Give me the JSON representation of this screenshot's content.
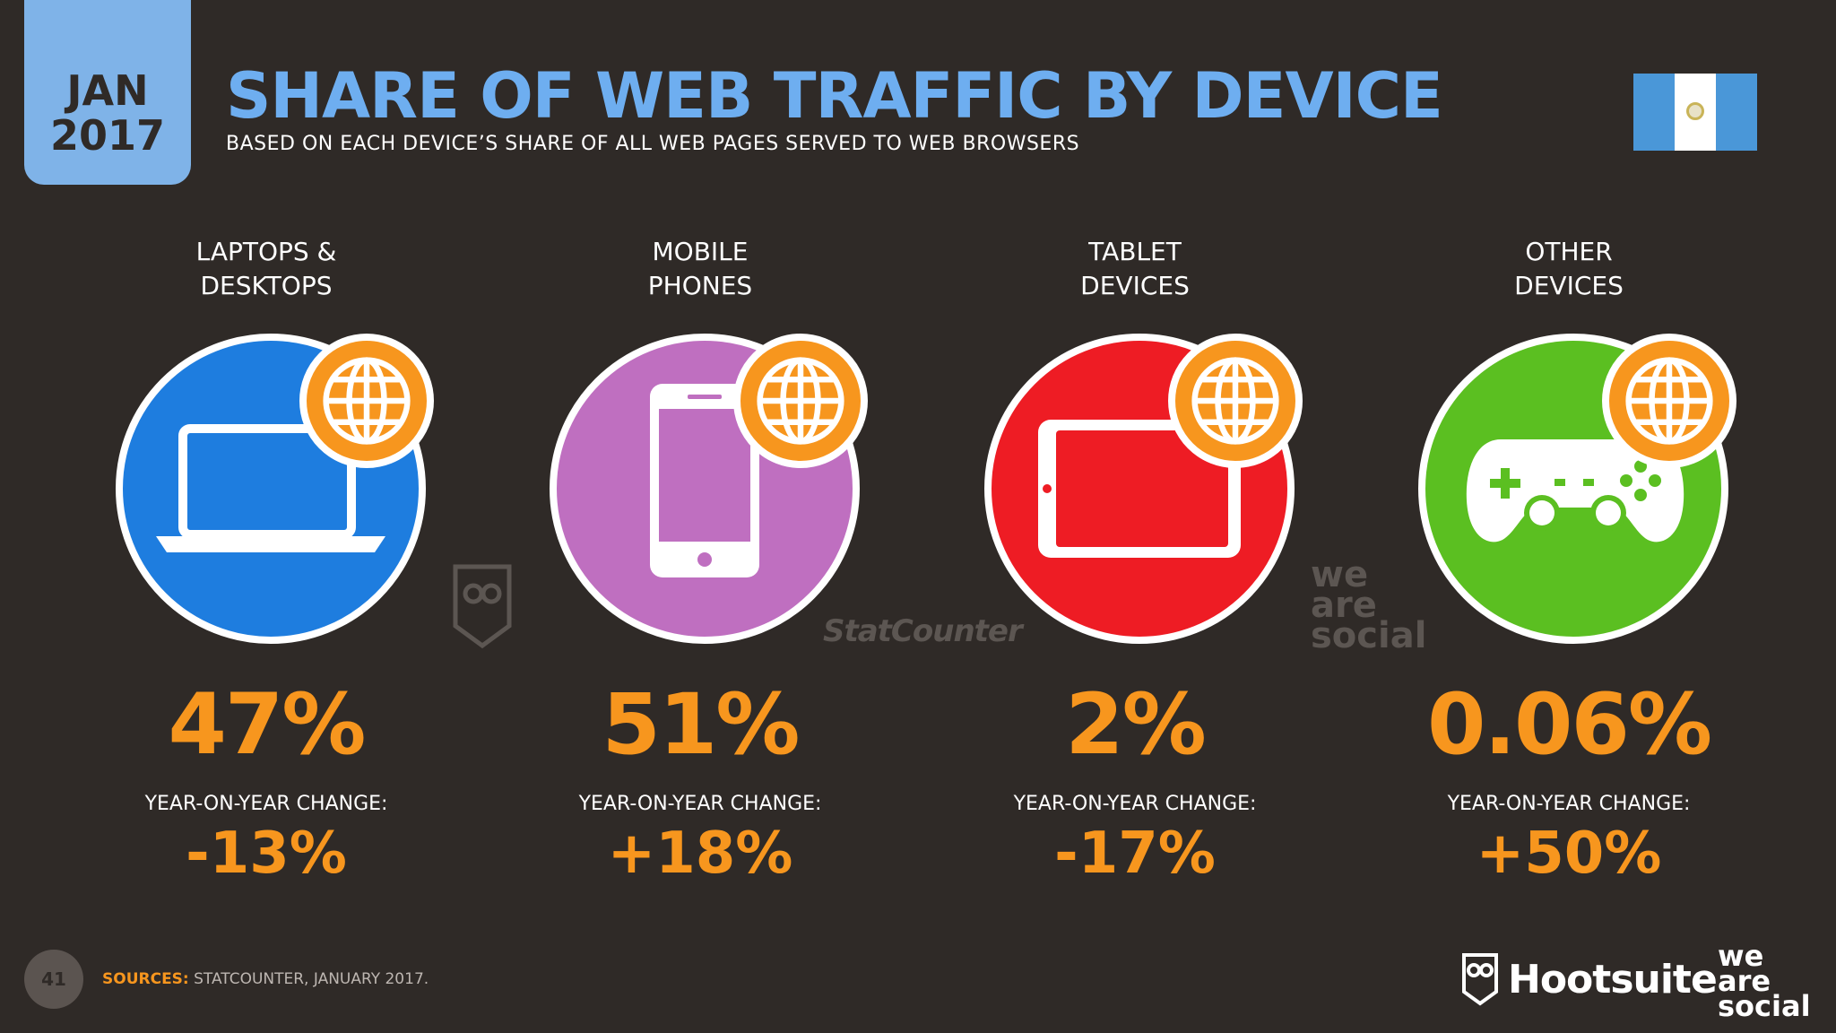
{
  "header": {
    "date_month": "JAN",
    "date_year": "2017",
    "title": "SHARE OF WEB TRAFFIC BY DEVICE",
    "subtitle": "BASED ON EACH DEVICE’S SHARE OF ALL WEB PAGES SERVED TO WEB BROWSERS"
  },
  "flag": {
    "colors": [
      "#4a97d8",
      "#ffffff",
      "#4a97d8"
    ],
    "icon": "guatemala-flag"
  },
  "devices": [
    {
      "label_line1": "LAPTOPS &",
      "label_line2": "DESKTOPS",
      "percent": "47%",
      "yoy_label": "YEAR-ON-YEAR CHANGE:",
      "yoy_value": "-13%",
      "color": "#1e7ddf",
      "icon": "laptop-icon"
    },
    {
      "label_line1": "MOBILE",
      "label_line2": "PHONES",
      "percent": "51%",
      "yoy_label": "YEAR-ON-YEAR CHANGE:",
      "yoy_value": "+18%",
      "color": "#bf6fc0",
      "icon": "mobile-phone-icon"
    },
    {
      "label_line1": "TABLET",
      "label_line2": "DEVICES",
      "percent": "2%",
      "yoy_label": "YEAR-ON-YEAR CHANGE:",
      "yoy_value": "-17%",
      "color": "#ee1c24",
      "icon": "tablet-icon"
    },
    {
      "label_line1": "OTHER",
      "label_line2": "DEVICES",
      "percent": "0.06%",
      "yoy_label": "YEAR-ON-YEAR CHANGE:",
      "yoy_value": "+50%",
      "color": "#5bbf21",
      "icon": "gamepad-icon"
    }
  ],
  "globe_icon": {
    "icon": "globe-icon",
    "color": "#f7961e"
  },
  "watermarks": {
    "statcounter": "StatCounter",
    "was_line1": "we",
    "was_line2": "are",
    "was_line3": "social"
  },
  "footer": {
    "page_number": "41",
    "sources_label": "SOURCES:",
    "sources_text": "STATCOUNTER, JANUARY 2017.",
    "hootsuite": "Hootsuite",
    "was_line1": "we",
    "was_line2": "are",
    "was_line3": "social"
  }
}
